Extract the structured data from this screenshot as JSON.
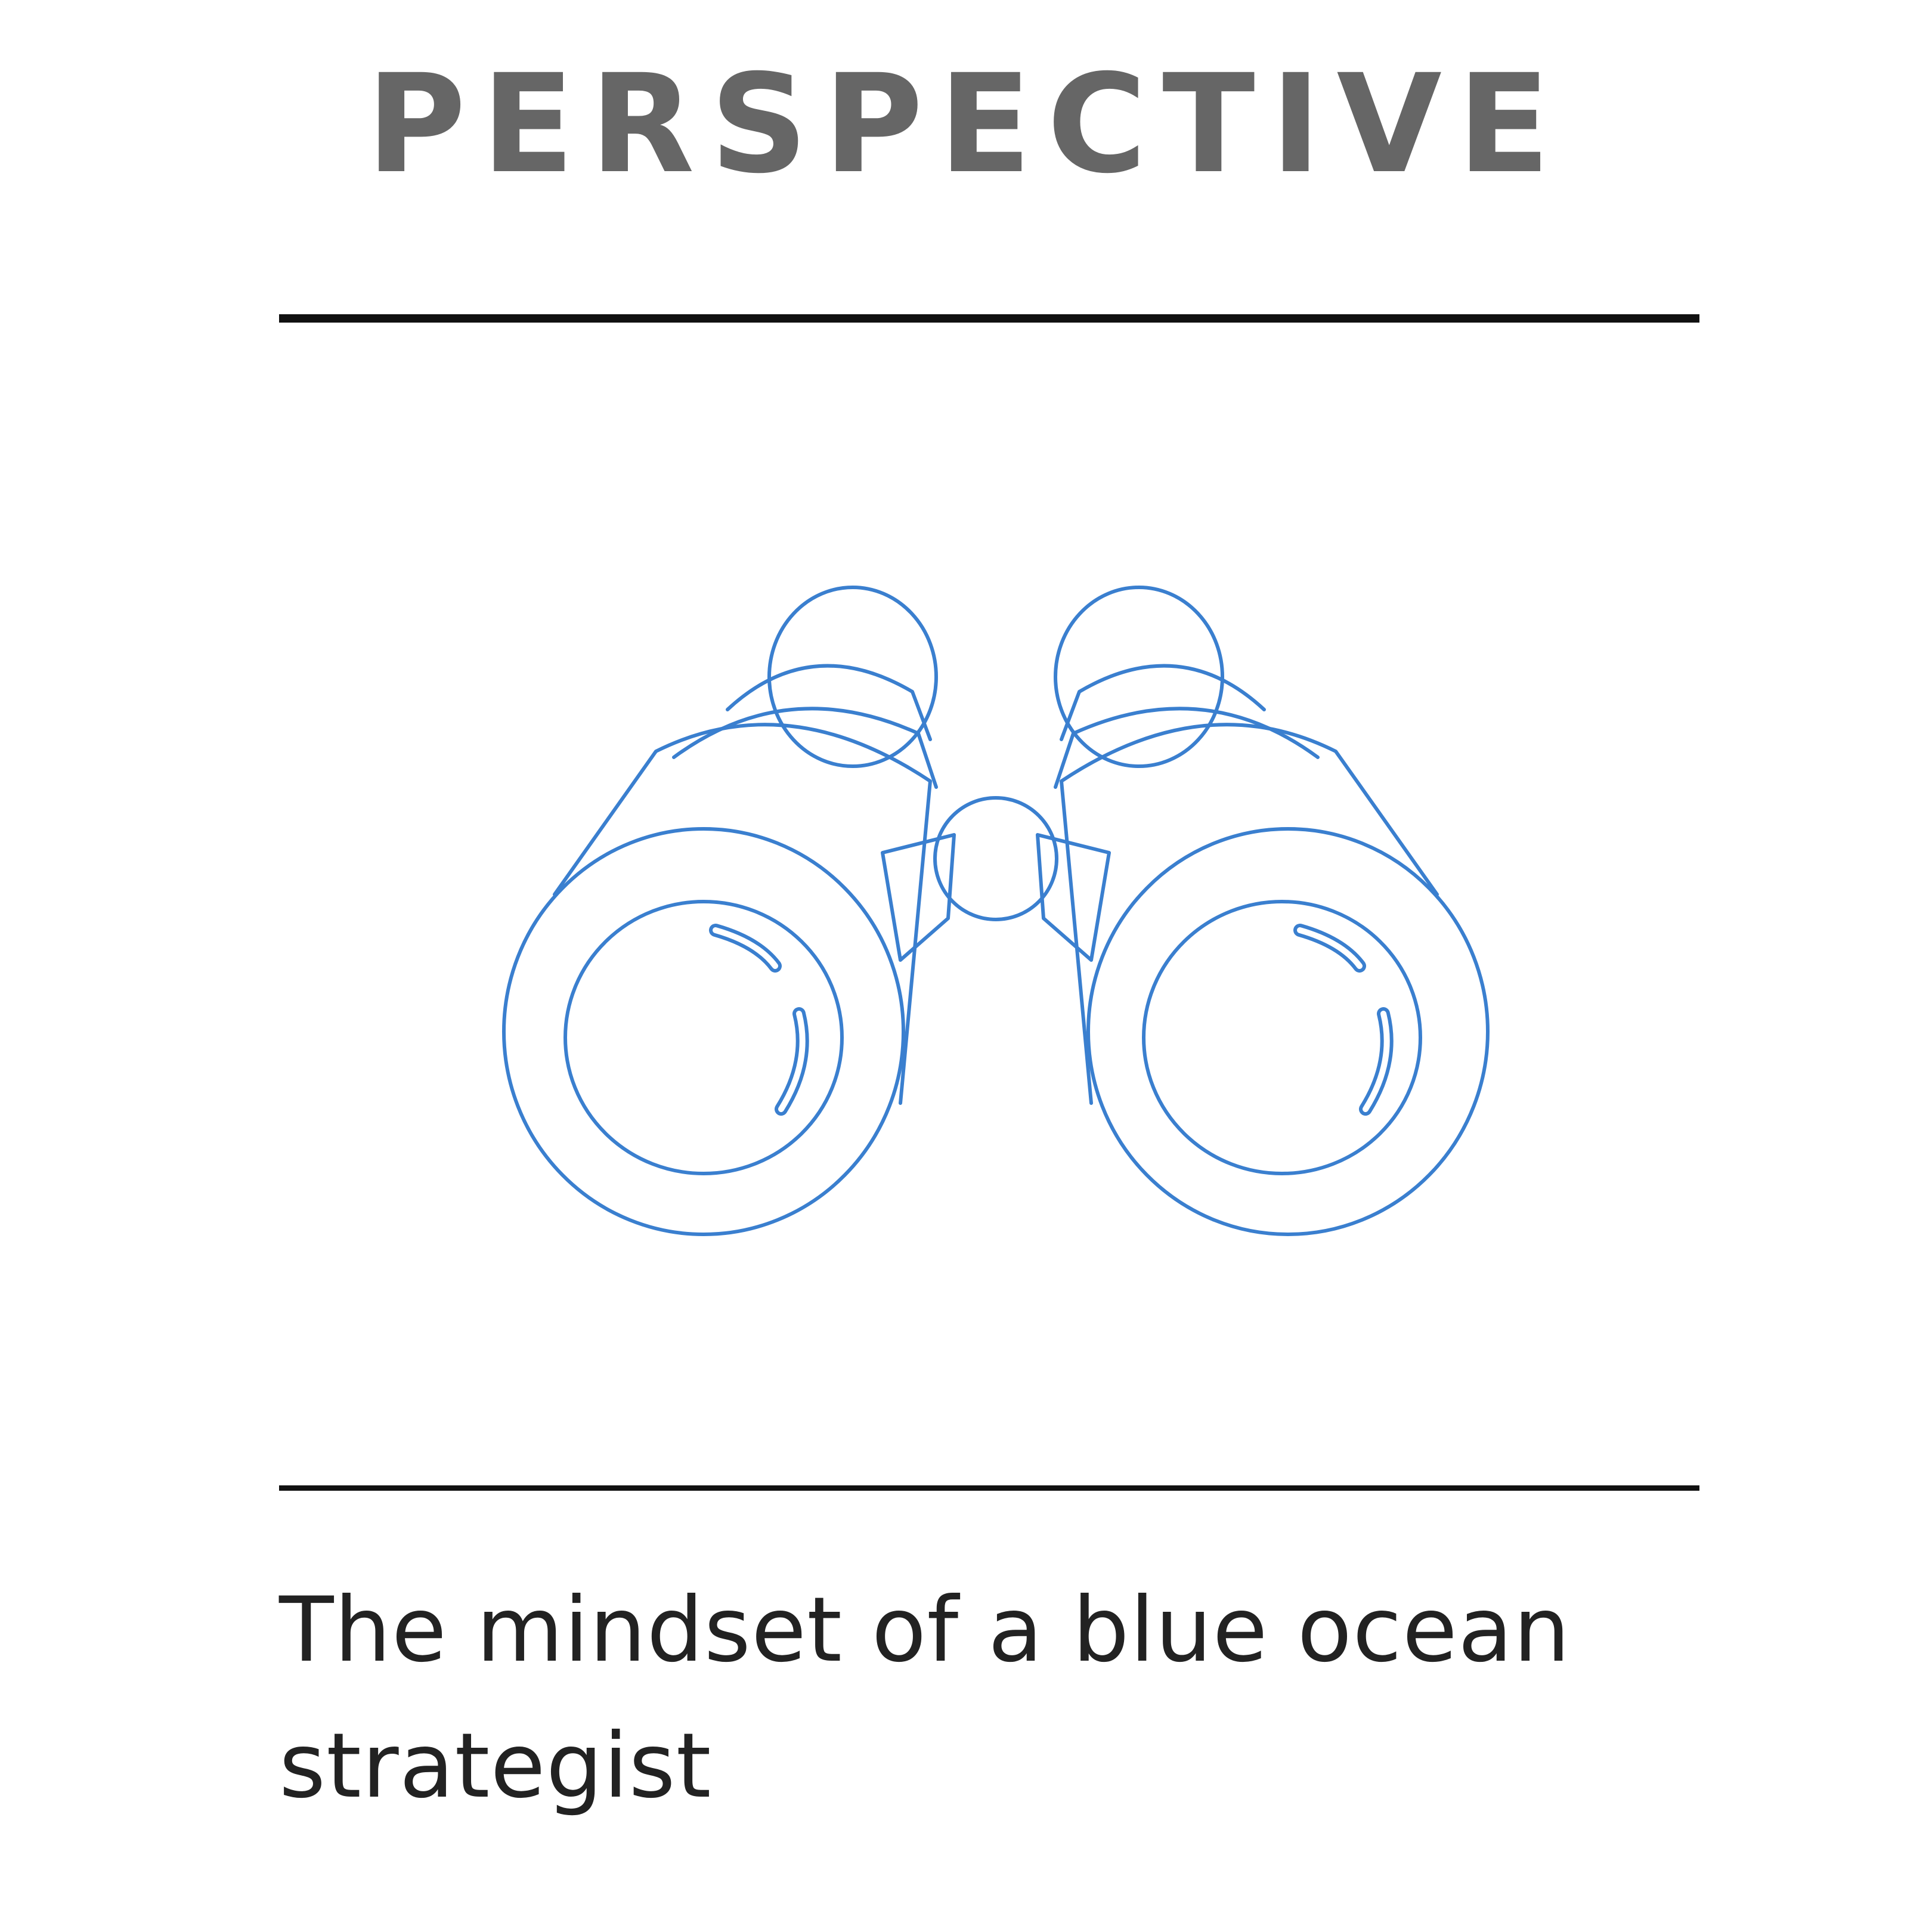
{
  "card": {
    "title": "PERSPECTIVE",
    "caption": "The mindset of a blue ocean strategist",
    "icon": "binoculars-icon"
  },
  "colors": {
    "title": "#666666",
    "rule": "#111111",
    "icon_stroke": "#3a7fcf",
    "caption": "#222222",
    "background": "#ffffff"
  }
}
